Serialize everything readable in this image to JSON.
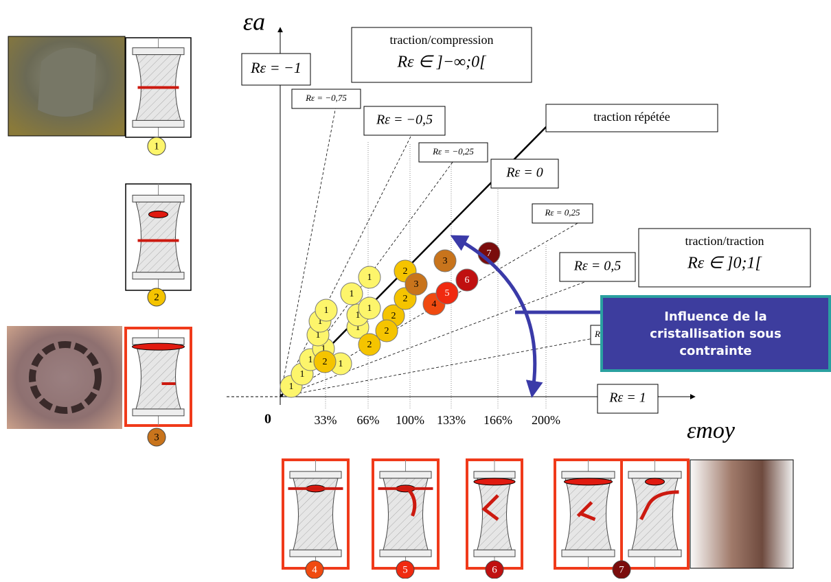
{
  "axes": {
    "y_label": "εa",
    "x_label": "εmoy",
    "origin": "0",
    "x_ticks": [
      "33%",
      "66%",
      "100%",
      "133%",
      "166%",
      "200%"
    ]
  },
  "ratio_labels": [
    "Rε = −1",
    "Rε = −0,75",
    "Rε = −0,5",
    "Rε = −0,25",
    "Rε = 0",
    "Rε = 0,25",
    "Rε = 0,5",
    "R",
    "Rε = 1"
  ],
  "regions": [
    {
      "title": "traction/compression",
      "range": "Rε ∈ ]−∞;0["
    },
    {
      "title": "traction/traction",
      "range": "Rε ∈ ]0;1["
    }
  ],
  "line_label": "traction répétée",
  "callout": "Influence de la cristallisation sous contrainte",
  "points": [
    "1",
    "1",
    "1",
    "1",
    "1",
    "1",
    "1",
    "1",
    "1",
    "1",
    "1",
    "1",
    "1",
    "2",
    "2",
    "2",
    "2",
    "2",
    "2",
    "3",
    "3",
    "4",
    "5",
    "6",
    "7"
  ],
  "specimens": [
    "1",
    "2",
    "3",
    "4",
    "5",
    "6",
    "7"
  ]
}
